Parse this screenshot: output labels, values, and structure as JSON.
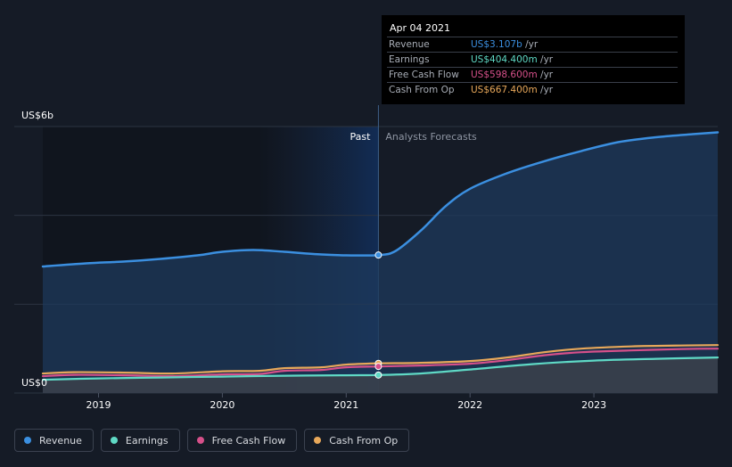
{
  "chart_data": {
    "type": "area",
    "y_axis": {
      "top_label": "US$6b",
      "bottom_label": "US$0",
      "ylim": [
        0,
        6
      ]
    },
    "x_axis": {
      "ticks": [
        "2019",
        "2020",
        "2021",
        "2022",
        "2023"
      ],
      "xlim": [
        2018.55,
        2024.0
      ]
    },
    "divider_date": 2021.26,
    "region_labels": {
      "past": "Past",
      "forecast": "Analysts Forecasts"
    },
    "series": [
      {
        "name": "Revenue",
        "color": "#3b8fe0",
        "points": [
          [
            2018.55,
            2.85
          ],
          [
            2018.9,
            2.92
          ],
          [
            2019.2,
            2.96
          ],
          [
            2019.5,
            3.02
          ],
          [
            2019.8,
            3.1
          ],
          [
            2020.0,
            3.18
          ],
          [
            2020.25,
            3.22
          ],
          [
            2020.5,
            3.18
          ],
          [
            2020.8,
            3.12
          ],
          [
            2021.0,
            3.1
          ],
          [
            2021.26,
            3.107
          ],
          [
            2021.4,
            3.2
          ],
          [
            2021.6,
            3.65
          ],
          [
            2021.8,
            4.2
          ],
          [
            2022.0,
            4.6
          ],
          [
            2022.3,
            4.95
          ],
          [
            2022.6,
            5.22
          ],
          [
            2022.9,
            5.45
          ],
          [
            2023.2,
            5.65
          ],
          [
            2023.5,
            5.76
          ],
          [
            2023.8,
            5.83
          ],
          [
            2024.0,
            5.87
          ]
        ]
      },
      {
        "name": "Earnings",
        "color": "#5fd9c5",
        "points": [
          [
            2018.55,
            0.3
          ],
          [
            2019.0,
            0.33
          ],
          [
            2019.5,
            0.35
          ],
          [
            2020.0,
            0.37
          ],
          [
            2020.5,
            0.39
          ],
          [
            2021.0,
            0.4
          ],
          [
            2021.26,
            0.4044
          ],
          [
            2021.6,
            0.44
          ],
          [
            2022.0,
            0.53
          ],
          [
            2022.5,
            0.65
          ],
          [
            2023.0,
            0.73
          ],
          [
            2023.5,
            0.77
          ],
          [
            2024.0,
            0.8
          ]
        ]
      },
      {
        "name": "Free Cash Flow",
        "color": "#d6508a",
        "points": [
          [
            2018.55,
            0.38
          ],
          [
            2018.8,
            0.41
          ],
          [
            2019.2,
            0.4
          ],
          [
            2019.6,
            0.38
          ],
          [
            2020.0,
            0.42
          ],
          [
            2020.3,
            0.43
          ],
          [
            2020.5,
            0.5
          ],
          [
            2020.8,
            0.52
          ],
          [
            2021.0,
            0.58
          ],
          [
            2021.26,
            0.5986
          ],
          [
            2021.6,
            0.62
          ],
          [
            2022.0,
            0.66
          ],
          [
            2022.3,
            0.74
          ],
          [
            2022.6,
            0.85
          ],
          [
            2022.9,
            0.92
          ],
          [
            2023.3,
            0.96
          ],
          [
            2023.7,
            0.99
          ],
          [
            2024.0,
            1.0
          ]
        ]
      },
      {
        "name": "Cash From Op",
        "color": "#e8a85a",
        "points": [
          [
            2018.55,
            0.44
          ],
          [
            2018.8,
            0.47
          ],
          [
            2019.2,
            0.46
          ],
          [
            2019.6,
            0.44
          ],
          [
            2020.0,
            0.49
          ],
          [
            2020.3,
            0.5
          ],
          [
            2020.5,
            0.56
          ],
          [
            2020.8,
            0.58
          ],
          [
            2021.0,
            0.64
          ],
          [
            2021.26,
            0.6674
          ],
          [
            2021.6,
            0.68
          ],
          [
            2022.0,
            0.72
          ],
          [
            2022.3,
            0.8
          ],
          [
            2022.6,
            0.92
          ],
          [
            2022.9,
            1.0
          ],
          [
            2023.3,
            1.05
          ],
          [
            2023.7,
            1.07
          ],
          [
            2024.0,
            1.08
          ]
        ]
      }
    ],
    "grid": true,
    "legend_position": "bottom-left"
  },
  "tooltip": {
    "date": "Apr 04 2021",
    "rows": [
      {
        "label": "Revenue",
        "value": "US$3.107b",
        "unit": " /yr",
        "color": "#3b8fe0"
      },
      {
        "label": "Earnings",
        "value": "US$404.400m",
        "unit": " /yr",
        "color": "#5fd9c5"
      },
      {
        "label": "Free Cash Flow",
        "value": "US$598.600m",
        "unit": " /yr",
        "color": "#d6508a"
      },
      {
        "label": "Cash From Op",
        "value": "US$667.400m",
        "unit": " /yr",
        "color": "#e8a85a"
      }
    ]
  },
  "legend": [
    {
      "label": "Revenue",
      "color": "#3b8fe0"
    },
    {
      "label": "Earnings",
      "color": "#5fd9c5"
    },
    {
      "label": "Free Cash Flow",
      "color": "#d6508a"
    },
    {
      "label": "Cash From Op",
      "color": "#e8a85a"
    }
  ]
}
